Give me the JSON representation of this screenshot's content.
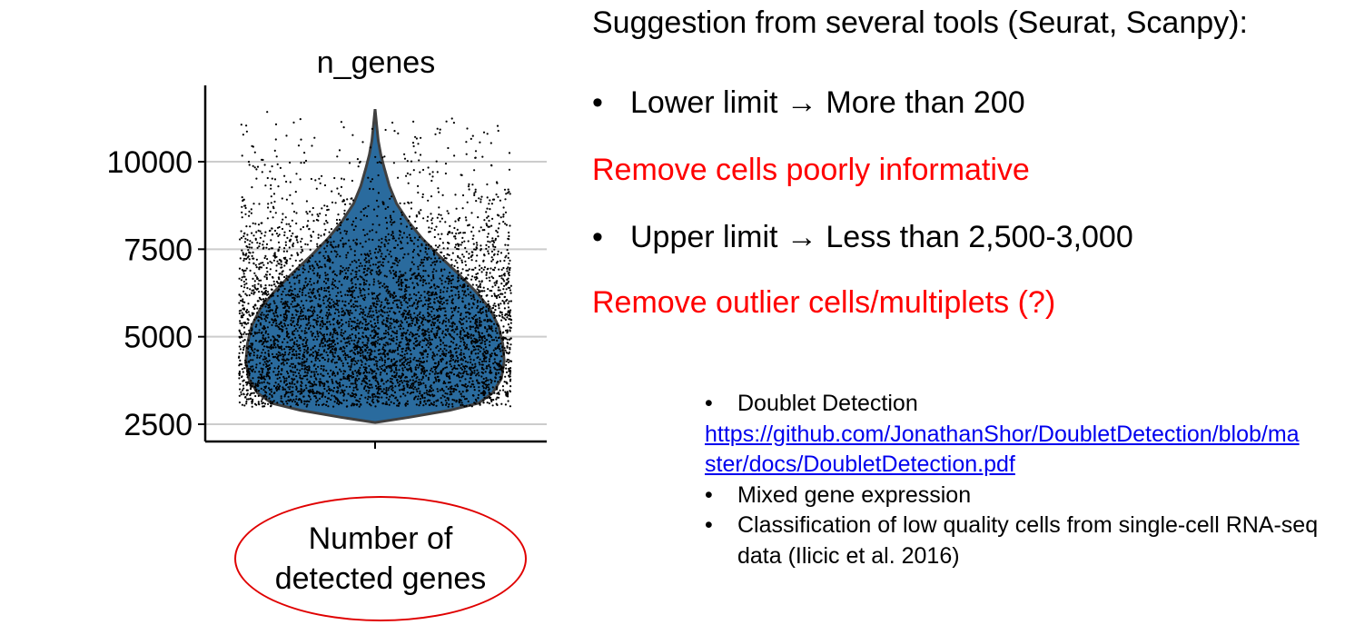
{
  "chart_data": {
    "type": "violin",
    "title": "n_genes",
    "xlabel": "",
    "ylabel": "",
    "ylim": [
      2400,
      12000
    ],
    "yticks": [
      2500,
      5000,
      7500,
      10000
    ],
    "ytick_labels": [
      "2500",
      "5000",
      "7500",
      "10000"
    ],
    "grid": true,
    "series": [
      {
        "min": 2550,
        "max": 11500,
        "profile": [
          [
            2550,
            0.0
          ],
          [
            2700,
            0.24
          ],
          [
            2900,
            0.52
          ],
          [
            3100,
            0.72
          ],
          [
            3400,
            0.82
          ],
          [
            3800,
            0.88
          ],
          [
            4300,
            0.9
          ],
          [
            4800,
            0.89
          ],
          [
            5300,
            0.86
          ],
          [
            5800,
            0.8
          ],
          [
            6300,
            0.7
          ],
          [
            6800,
            0.58
          ],
          [
            7300,
            0.45
          ],
          [
            7800,
            0.33
          ],
          [
            8300,
            0.23
          ],
          [
            8800,
            0.15
          ],
          [
            9300,
            0.1
          ],
          [
            9800,
            0.065
          ],
          [
            10200,
            0.04
          ],
          [
            10600,
            0.022
          ],
          [
            11000,
            0.012
          ],
          [
            11500,
            0.0
          ]
        ],
        "color": "#2a6b9e",
        "outline": "#404040"
      }
    ],
    "points_color": "#000000"
  },
  "annotation": {
    "ellipse_text": "Number of detected genes",
    "ellipse_color": "#e00000"
  },
  "right": {
    "headline": "Suggestion from several tools (Seurat, Scanpy):",
    "bullet_char": "•",
    "lower_limit": "Lower limit → More than 200",
    "note_lower": "Remove cells poorly informative",
    "upper_limit": "Upper limit → Less than 2,500-3,000",
    "note_upper": "Remove outlier cells/multiplets (?)",
    "note_color": "#ff0000"
  },
  "references": {
    "item1": "Doublet Detection",
    "item1_link": "https://github.com/JonathanShor/DoubletDetection/blob/master/docs/DoubletDetection.pdf",
    "item2": "Mixed gene expression",
    "item3": "Classification of low quality cells from single-cell RNA-seq data (Ilicic et al. 2016)"
  }
}
